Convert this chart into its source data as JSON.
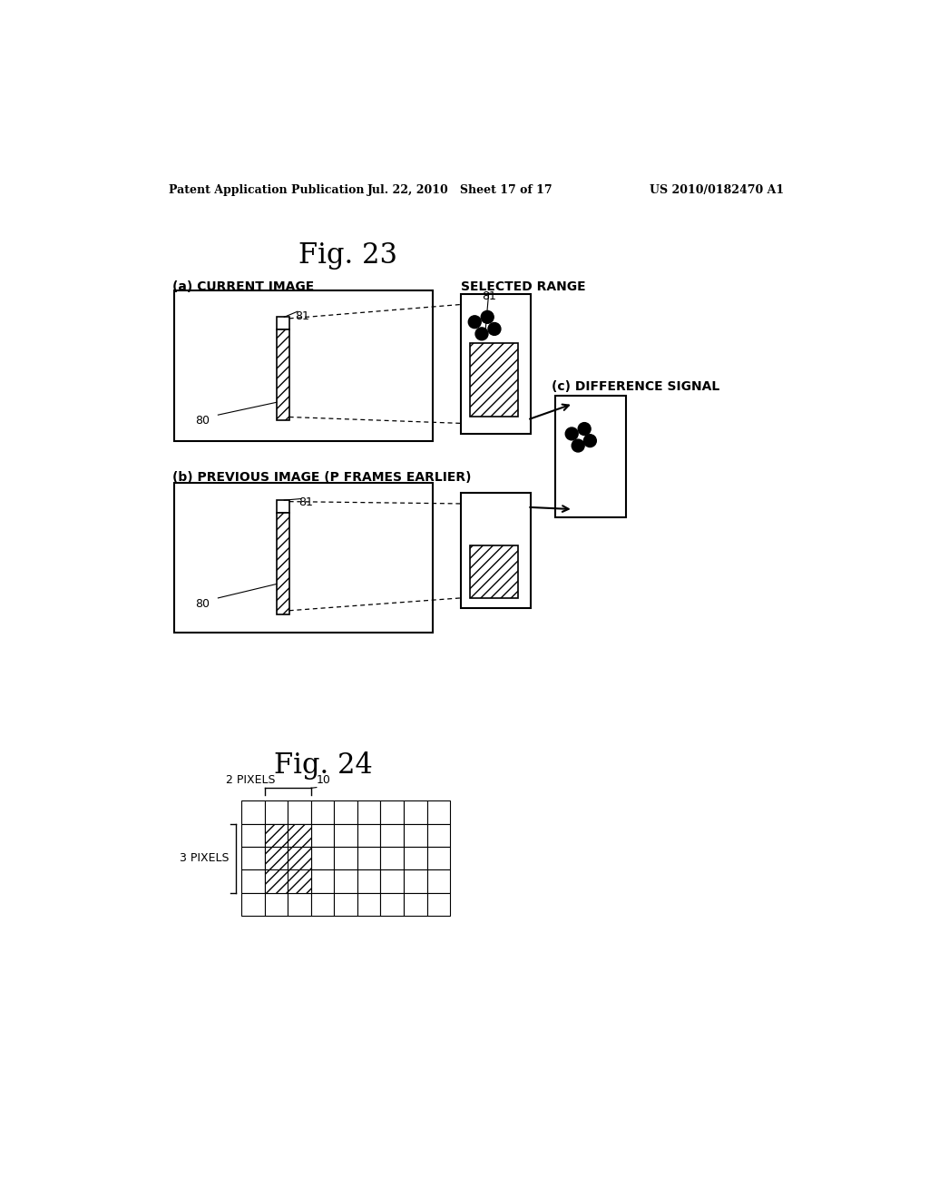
{
  "bg_color": "#ffffff",
  "header_left": "Patent Application Publication",
  "header_mid": "Jul. 22, 2010   Sheet 17 of 17",
  "header_right": "US 2010/0182470 A1",
  "fig23_title": "Fig. 23",
  "fig24_title": "Fig. 24",
  "label_a": "(a) CURRENT IMAGE",
  "label_b": "(b) PREVIOUS IMAGE (P FRAMES EARLIER)",
  "label_selected": "SELECTED RANGE",
  "label_diff": "(c) DIFFERENCE SIGNAL",
  "label_81_a": "81",
  "label_80_a": "80",
  "label_81_b": "81",
  "label_80_b": "80",
  "label_81_sel": "81",
  "label_2pix": "2 PIXELS",
  "label_10": "10",
  "label_3pix": "3 PIXELS"
}
